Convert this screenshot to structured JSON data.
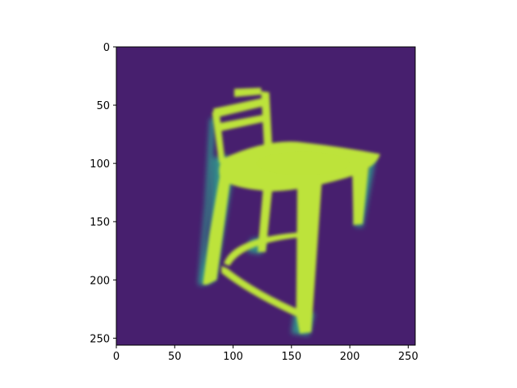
{
  "chart_data": {
    "type": "heatmap",
    "title": "",
    "xlabel": "",
    "ylabel": "",
    "xlim": [
      0,
      256
    ],
    "ylim": [
      256,
      0
    ],
    "x_ticks": [
      0,
      50,
      100,
      150,
      200,
      250
    ],
    "y_ticks": [
      0,
      50,
      100,
      150,
      200,
      250
    ],
    "x_tick_labels": [
      "0",
      "50",
      "100",
      "150",
      "200",
      "250"
    ],
    "y_tick_labels": [
      "0",
      "50",
      "100",
      "150",
      "200",
      "250"
    ],
    "colormap": "viridis",
    "background_color": "#471f6e",
    "foreground_color": "#bde33a",
    "edge_color": "#2f9e8f",
    "subject": "chair silhouette",
    "grid": false
  }
}
